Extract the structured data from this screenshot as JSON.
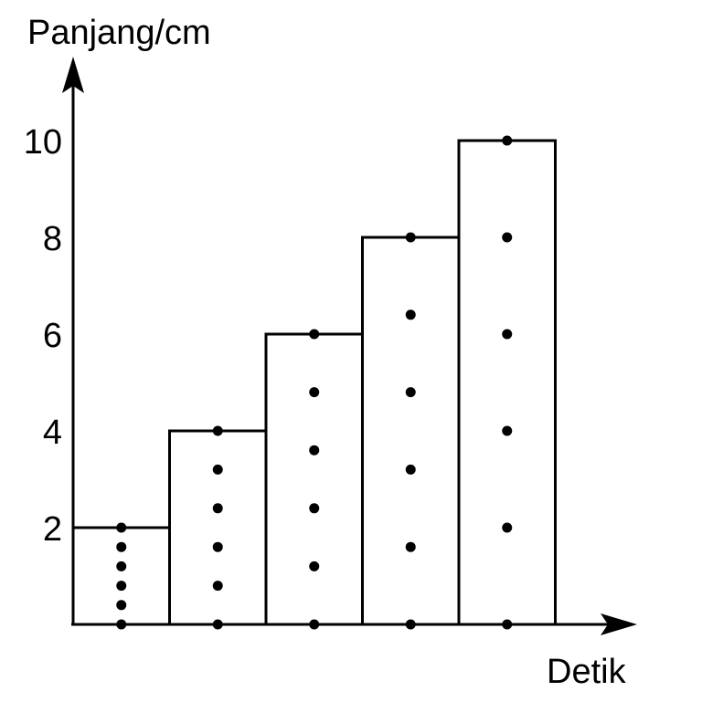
{
  "chart_data": {
    "type": "bar",
    "ylabel": "Panjang/cm",
    "xlabel": "Detik",
    "title": "",
    "yticks": [
      "2",
      "4",
      "6",
      "8",
      "10"
    ],
    "ylim": [
      0,
      10
    ],
    "categories": [
      "",
      "",
      "",
      "",
      ""
    ],
    "values": [
      2,
      4,
      6,
      8,
      10
    ],
    "dots": [
      [
        0,
        0.4,
        0.8,
        1.2,
        1.6,
        2
      ],
      [
        0,
        0.8,
        1.6,
        2.4,
        3.2,
        4
      ],
      [
        0,
        1.2,
        2.4,
        3.6,
        4.8,
        6
      ],
      [
        0,
        1.6,
        3.2,
        4.8,
        6.4,
        8
      ],
      [
        0,
        2,
        4,
        6,
        8,
        10
      ]
    ],
    "grid": false,
    "colors": {
      "stroke": "#000000",
      "fill": "#ffffff"
    }
  }
}
